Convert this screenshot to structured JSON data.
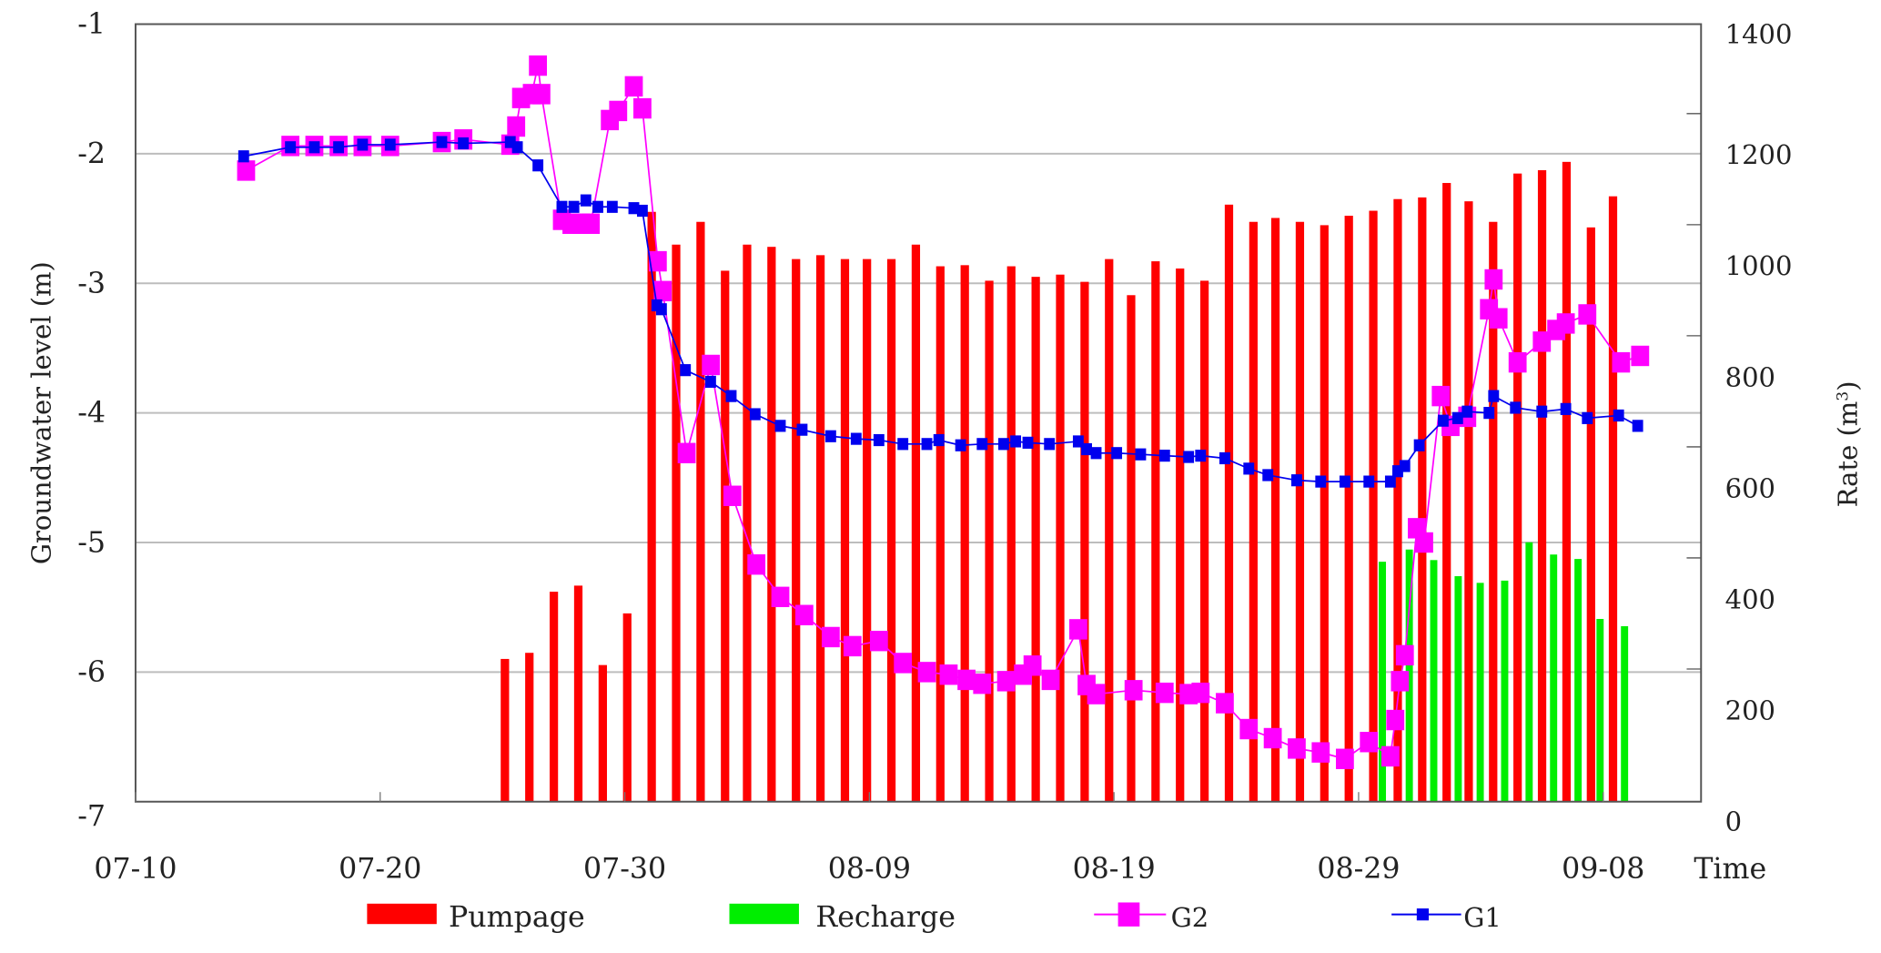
{
  "chart_data": {
    "type": "bar+line (dual axis)",
    "x_axis": {
      "label": "Time",
      "unit": "days since 07-10",
      "range": [
        0,
        64
      ],
      "ticks": [
        {
          "day": 0,
          "label": "07-10"
        },
        {
          "day": 10,
          "label": "07-20"
        },
        {
          "day": 20,
          "label": "07-30"
        },
        {
          "day": 30,
          "label": "08-09"
        },
        {
          "day": 40,
          "label": "08-19"
        },
        {
          "day": 50,
          "label": "08-29"
        },
        {
          "day": 60,
          "label": "09-08"
        }
      ]
    },
    "y_left": {
      "label": "Groundwater level (m)",
      "range": [
        -7,
        -1
      ],
      "ticks": [
        "-1",
        "-2",
        "-3",
        "-4",
        "-5",
        "-6",
        "-7"
      ],
      "grid": true
    },
    "y_right": {
      "label": "Rate (m",
      "label_sup": "3",
      "label_end": ")",
      "range": [
        0,
        1400
      ],
      "ticks": [
        "0",
        "200",
        "400",
        "600",
        "800",
        "1000",
        "1200",
        "1400"
      ]
    },
    "legend": {
      "placement": "bottom",
      "items": [
        "Pumpage",
        "Recharge",
        "G2",
        "G1"
      ]
    },
    "colors": {
      "Pumpage": "#ff0000",
      "Recharge": "#00ee00",
      "G2": "#ff00ff",
      "G1": "#0000ee",
      "grid": "#bdbdbd"
    },
    "bars": [
      {
        "name": "Pumpage",
        "axis": "right",
        "x": [
          15.1,
          16.1,
          17.1,
          18.1,
          19.1,
          20.1,
          21.1,
          22.1,
          23.1,
          24.1,
          25.0,
          26.0,
          27.0,
          28.0,
          29.0,
          29.9,
          30.9,
          31.9,
          32.9,
          33.9,
          34.9,
          35.8,
          36.8,
          37.8,
          38.8,
          39.8,
          40.7,
          41.7,
          42.7,
          43.7,
          44.7,
          45.7,
          46.6,
          47.6,
          48.6,
          49.6,
          50.6,
          51.6,
          52.6,
          53.6,
          54.5,
          55.5,
          56.5,
          57.5,
          58.5,
          59.5,
          60.4
        ],
        "values": [
          257,
          268,
          378,
          389,
          246,
          339,
          1062,
          1003,
          1044,
          956,
          1003,
          999,
          977,
          984,
          977,
          977,
          977,
          1003,
          964,
          966,
          938,
          964,
          945,
          949,
          936,
          977,
          912,
          973,
          960,
          938,
          1075,
          1044,
          1051,
          1044,
          1038,
          1055,
          1064,
          1085,
          1088,
          1114,
          1081,
          1044,
          1131,
          1137,
          1152,
          1034,
          1090
        ]
      },
      {
        "name": "Recharge",
        "axis": "right",
        "x": [
          50.8,
          51.9,
          52.9,
          53.9,
          54.8,
          55.8,
          56.8,
          57.8,
          58.8,
          59.7,
          60.7
        ],
        "values": [
          432,
          454,
          435,
          406,
          394,
          398,
          467,
          445,
          437,
          329,
          316
        ]
      }
    ],
    "series": [
      {
        "name": "G1",
        "axis": "left",
        "marker": "small-square",
        "x": [
          4.42,
          6.33,
          7.31,
          8.3,
          9.28,
          10.41,
          12.52,
          13.4,
          15.32,
          15.61,
          16.45,
          17.43,
          17.92,
          18.41,
          18.9,
          19.49,
          20.37,
          20.72,
          21.31,
          21.5,
          22.48,
          23.51,
          24.35,
          25.33,
          26.36,
          27.25,
          28.42,
          29.46,
          30.39,
          31.37,
          32.35,
          32.84,
          33.73,
          34.61,
          35.49,
          35.98,
          36.48,
          37.36,
          38.54,
          38.88,
          39.27,
          40.11,
          41.09,
          42.07,
          43.05,
          43.54,
          44.53,
          45.51,
          46.29,
          47.47,
          48.45,
          49.44,
          50.42,
          51.3,
          51.6,
          51.89,
          52.48,
          53.46,
          54.05,
          54.44,
          55.33,
          55.52,
          56.41,
          57.49,
          58.47,
          59.35,
          60.63,
          61.41
        ],
        "y": [
          -2.02,
          -1.95,
          -1.95,
          -1.95,
          -1.93,
          -1.93,
          -1.91,
          -1.92,
          -1.91,
          -1.95,
          -2.09,
          -2.41,
          -2.41,
          -2.36,
          -2.41,
          -2.41,
          -2.42,
          -2.44,
          -3.17,
          -3.2,
          -3.67,
          -3.76,
          -3.87,
          -4.01,
          -4.1,
          -4.13,
          -4.18,
          -4.2,
          -4.21,
          -4.24,
          -4.24,
          -4.21,
          -4.25,
          -4.24,
          -4.24,
          -4.22,
          -4.23,
          -4.24,
          -4.22,
          -4.28,
          -4.31,
          -4.31,
          -4.32,
          -4.33,
          -4.34,
          -4.33,
          -4.35,
          -4.43,
          -4.48,
          -4.52,
          -4.53,
          -4.53,
          -4.53,
          -4.53,
          -4.45,
          -4.41,
          -4.25,
          -4.06,
          -4.04,
          -3.99,
          -4.0,
          -3.87,
          -3.96,
          -3.99,
          -3.97,
          -4.04,
          -4.02,
          -4.1
        ]
      },
      {
        "name": "G2",
        "axis": "left",
        "marker": "large-square",
        "x": [
          4.52,
          6.33,
          7.31,
          8.3,
          9.28,
          10.41,
          12.52,
          13.4,
          15.32,
          15.56,
          15.76,
          16.2,
          16.45,
          16.59,
          17.43,
          17.82,
          18.21,
          18.61,
          19.39,
          19.73,
          20.37,
          20.72,
          21.35,
          21.55,
          22.53,
          23.52,
          24.4,
          25.38,
          26.36,
          27.34,
          28.42,
          29.31,
          30.39,
          31.37,
          32.35,
          33.24,
          33.97,
          34.61,
          35.59,
          36.28,
          36.67,
          37.41,
          38.54,
          38.88,
          39.27,
          40.8,
          42.07,
          43.05,
          43.54,
          44.53,
          45.51,
          46.49,
          47.47,
          48.45,
          49.44,
          50.42,
          51.3,
          51.5,
          51.69,
          51.89,
          52.38,
          52.68,
          53.36,
          53.76,
          54.44,
          55.33,
          55.52,
          55.72,
          56.5,
          57.49,
          58.08,
          58.47,
          59.35,
          60.73,
          61.51
        ],
        "y": [
          -2.13,
          -1.94,
          -1.94,
          -1.94,
          -1.94,
          -1.94,
          -1.91,
          -1.89,
          -1.93,
          -1.79,
          -1.57,
          -1.54,
          -1.32,
          -1.54,
          -2.51,
          -2.54,
          -2.54,
          -2.54,
          -1.74,
          -1.67,
          -1.48,
          -1.65,
          -2.83,
          -3.06,
          -4.31,
          -3.63,
          -4.64,
          -5.17,
          -5.42,
          -5.56,
          -5.73,
          -5.8,
          -5.76,
          -5.93,
          -6.0,
          -6.02,
          -6.06,
          -6.09,
          -6.07,
          -6.02,
          -5.95,
          -6.06,
          -5.67,
          -6.1,
          -6.17,
          -6.14,
          -6.16,
          -6.17,
          -6.16,
          -6.24,
          -6.44,
          -6.51,
          -6.59,
          -6.62,
          -6.67,
          -6.54,
          -6.65,
          -6.37,
          -6.07,
          -5.87,
          -4.89,
          -5.0,
          -3.87,
          -4.1,
          -4.03,
          -3.2,
          -2.97,
          -3.27,
          -3.61,
          -3.45,
          -3.36,
          -3.31,
          -3.24,
          -3.61,
          -3.56
        ]
      }
    ]
  }
}
